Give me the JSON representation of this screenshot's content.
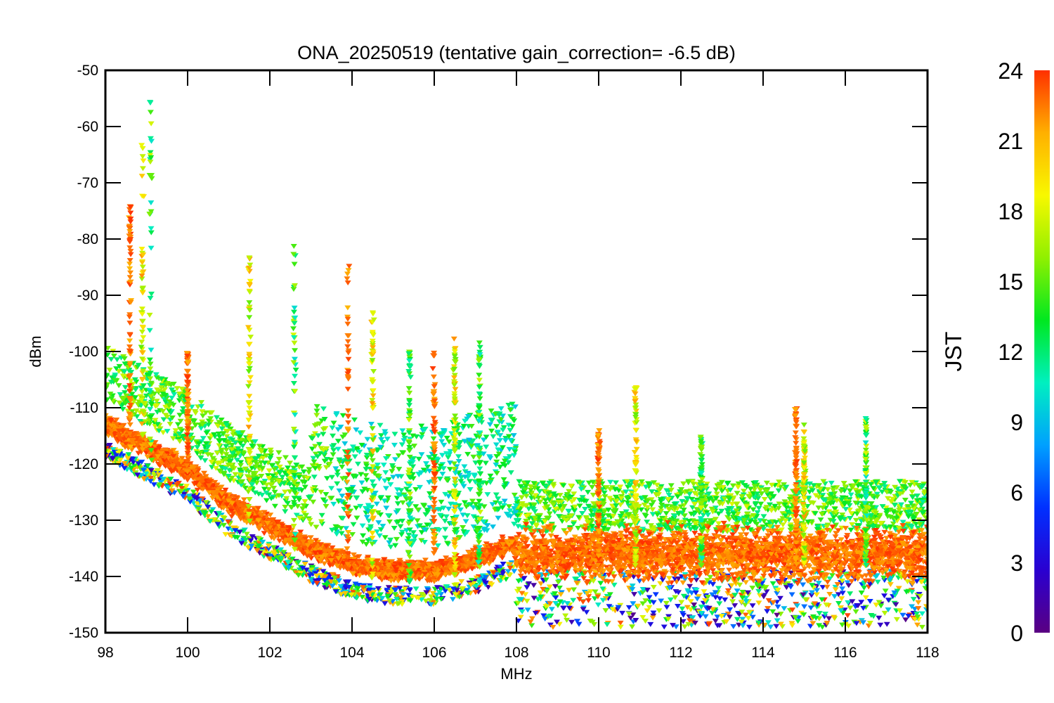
{
  "chart_data": {
    "type": "scatter",
    "title": "ONA_20250519 (tentative gain_correction= -6.5 dB)",
    "xlabel": "MHz",
    "ylabel": "dBm",
    "xlim": [
      98,
      118
    ],
    "ylim": [
      -150,
      -50
    ],
    "x_ticks": [
      "98",
      "100",
      "102",
      "104",
      "106",
      "108",
      "110",
      "112",
      "114",
      "116",
      "118"
    ],
    "y_ticks": [
      "-50",
      "-60",
      "-70",
      "-80",
      "-90",
      "-100",
      "-110",
      "-120",
      "-130",
      "-140",
      "-150"
    ],
    "marker": "down-triangle",
    "grid": false,
    "colorbar": {
      "label": "JST",
      "range": [
        0,
        24
      ],
      "ticks": [
        "0",
        "3",
        "6",
        "9",
        "12",
        "15",
        "18",
        "21",
        "24"
      ],
      "colormap": "rainbow",
      "stops": [
        "#5a0082",
        "#2a00d0",
        "#0030ff",
        "#00a0ff",
        "#00f0c0",
        "#00e820",
        "#90f000",
        "#f8f800",
        "#ffb000",
        "#ff3000"
      ]
    },
    "noise_floor_approx": {
      "x": [
        98,
        99,
        100,
        101,
        102,
        103,
        104,
        105,
        106,
        107,
        107.9,
        108,
        110,
        112,
        114,
        116,
        118
      ],
      "y": [
        -113,
        -117,
        -121,
        -127,
        -131,
        -135,
        -138,
        -139,
        -139,
        -137,
        -134,
        -136,
        -136,
        -136,
        -136,
        -136,
        -136
      ]
    },
    "strong_signals": [
      {
        "x": 98.6,
        "y_peak": -74
      },
      {
        "x": 98.9,
        "y_peak": -61
      },
      {
        "x": 99.1,
        "y_peak": -54
      },
      {
        "x": 100.0,
        "y_peak": -100
      },
      {
        "x": 101.5,
        "y_peak": -83
      },
      {
        "x": 102.6,
        "y_peak": -80
      },
      {
        "x": 103.9,
        "y_peak": -83
      },
      {
        "x": 104.5,
        "y_peak": -93
      },
      {
        "x": 105.4,
        "y_peak": -100
      },
      {
        "x": 106.0,
        "y_peak": -100
      },
      {
        "x": 106.5,
        "y_peak": -97
      },
      {
        "x": 107.1,
        "y_peak": -98
      },
      {
        "x": 110.0,
        "y_peak": -114
      },
      {
        "x": 110.9,
        "y_peak": -105
      },
      {
        "x": 112.5,
        "y_peak": -115
      },
      {
        "x": 114.8,
        "y_peak": -110
      },
      {
        "x": 115.0,
        "y_peak": -113
      },
      {
        "x": 116.5,
        "y_peak": -111
      }
    ]
  }
}
